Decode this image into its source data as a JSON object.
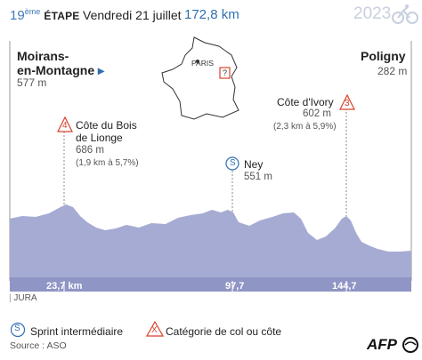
{
  "header": {
    "stage_number": "19",
    "stage_suffix": "ème",
    "stage_word": "ÉTAPE",
    "date": "Vendredi 21 juillet",
    "distance": "172,8 km",
    "year": "2023"
  },
  "start": {
    "name_line1": "Moirans-",
    "name_line2": "en-Montagne",
    "altitude": "577 m"
  },
  "finish": {
    "name": "Poligny",
    "altitude": "282 m"
  },
  "map": {
    "city_label": "PARIS",
    "marker": "?"
  },
  "climbs": [
    {
      "category": "4",
      "name_line1": "Côte du Bois",
      "name_line2": "de Lionge",
      "altitude": "686 m",
      "detail": "(1,9 km à 5,7%)"
    },
    {
      "category": "3",
      "name_line1": "Côte d'Ivory",
      "altitude": "602 m",
      "detail": "(2,3 km à 5,9%)"
    }
  ],
  "sprint": {
    "symbol": "S",
    "name": "Ney",
    "altitude": "551 m"
  },
  "km_marks": [
    "23,7 km",
    "97,7",
    "144,7"
  ],
  "region": "JURA",
  "legend": {
    "sprint_symbol": "S",
    "sprint_label": "Sprint intermédiaire",
    "category_symbol": "X",
    "category_label": "Catégorie de col ou côte"
  },
  "source": "Source : ASO",
  "logo": "AFP",
  "colors": {
    "profile_fill": "#a6abd3",
    "accent_blue": "#2f6fb0",
    "climb_red": "#d9422b",
    "km_band": "#8f95c4"
  }
}
